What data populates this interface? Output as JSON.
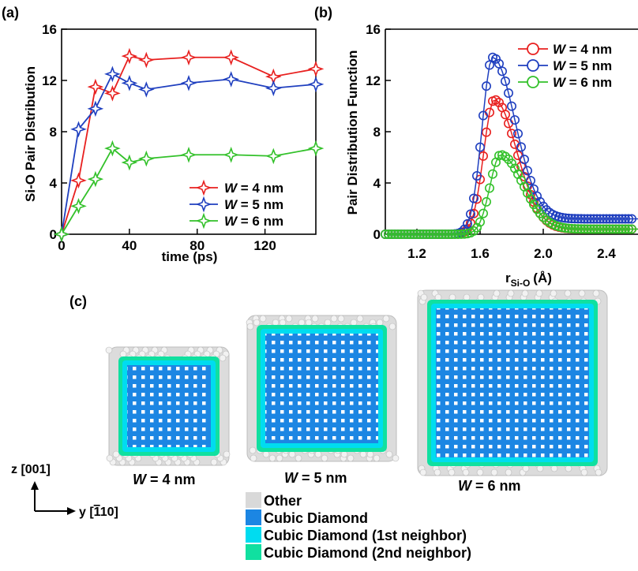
{
  "panels": {
    "a": {
      "label": "(a)"
    },
    "b": {
      "label": "(b)"
    },
    "c": {
      "label": "(c)"
    }
  },
  "chart_data": [
    {
      "panel": "(a)",
      "type": "line",
      "xlabel": "time (ps)",
      "ylabel": "Si-O Pair Distribution",
      "xlim": [
        0,
        150
      ],
      "ylim": [
        0,
        16
      ],
      "xticks": [
        0,
        40,
        80,
        120
      ],
      "yticks": [
        0,
        4,
        8,
        12,
        16
      ],
      "grid": false,
      "legend_position": "bottom-right",
      "marker": "four-point-star",
      "series": [
        {
          "name": "W = 4 nm",
          "color": "#e8201f",
          "x": [
            0,
            10,
            20,
            30,
            40,
            50,
            75,
            100,
            125,
            150
          ],
          "y": [
            0,
            4.2,
            11.5,
            11.0,
            13.9,
            13.6,
            13.8,
            13.8,
            12.3,
            12.9
          ]
        },
        {
          "name": "W = 5 nm",
          "color": "#1f3fbf",
          "x": [
            0,
            10,
            20,
            30,
            40,
            50,
            75,
            100,
            125,
            150
          ],
          "y": [
            0,
            8.2,
            9.8,
            12.5,
            11.8,
            11.3,
            11.8,
            12.1,
            11.4,
            11.7
          ]
        },
        {
          "name": "W = 6 nm",
          "color": "#33c12a",
          "x": [
            0,
            10,
            20,
            30,
            40,
            50,
            75,
            100,
            125,
            150
          ],
          "y": [
            0,
            2.2,
            4.3,
            6.7,
            5.6,
            5.9,
            6.2,
            6.2,
            6.1,
            6.7
          ]
        }
      ]
    },
    {
      "panel": "(b)",
      "type": "line",
      "xlabel": "r",
      "xlabel_sub": "Si-O",
      "xlabel_unit": "(Å)",
      "ylabel": "Pair Distribution Function",
      "xlim": [
        1.0,
        2.6
      ],
      "ylim": [
        0,
        16
      ],
      "xticks": [
        1.2,
        1.6,
        2.0,
        2.4
      ],
      "yticks": [
        0,
        4,
        8,
        12,
        16
      ],
      "grid": false,
      "legend_position": "top-right",
      "marker": "open-circle",
      "series": [
        {
          "name": "W = 4 nm",
          "color": "#e8201f",
          "peak_x": 1.69,
          "peak_y": 10.5,
          "tail_y": 0.4
        },
        {
          "name": "W = 5 nm",
          "color": "#1f3fbf",
          "peak_x": 1.68,
          "peak_y": 13.8,
          "tail_y": 1.2
        },
        {
          "name": "W = 6 nm",
          "color": "#33c12a",
          "peak_x": 1.73,
          "peak_y": 6.2,
          "tail_y": 0.4
        }
      ]
    }
  ],
  "nanowires": [
    {
      "caption": "W = 4 nm",
      "W": "W",
      "rest": " = 4 nm"
    },
    {
      "caption": "W = 5 nm",
      "W": "W",
      "rest": " = 5 nm"
    },
    {
      "caption": "W = 6 nm",
      "W": "W",
      "rest": " = 6 nm"
    }
  ],
  "axes_indicator": {
    "z": "z [001]",
    "y_prefix": "y [",
    "y_bar": "1",
    "y_suffix": "10]"
  },
  "structure_legend": [
    {
      "label": "Other",
      "color": "#d9d9d9"
    },
    {
      "label": "Cubic Diamond",
      "color": "#1c86e3"
    },
    {
      "label": "Cubic Diamond (1st neighbor)",
      "color": "#00dcf0"
    },
    {
      "label": "Cubic Diamond (2nd neighbor)",
      "color": "#10e0a0"
    }
  ]
}
